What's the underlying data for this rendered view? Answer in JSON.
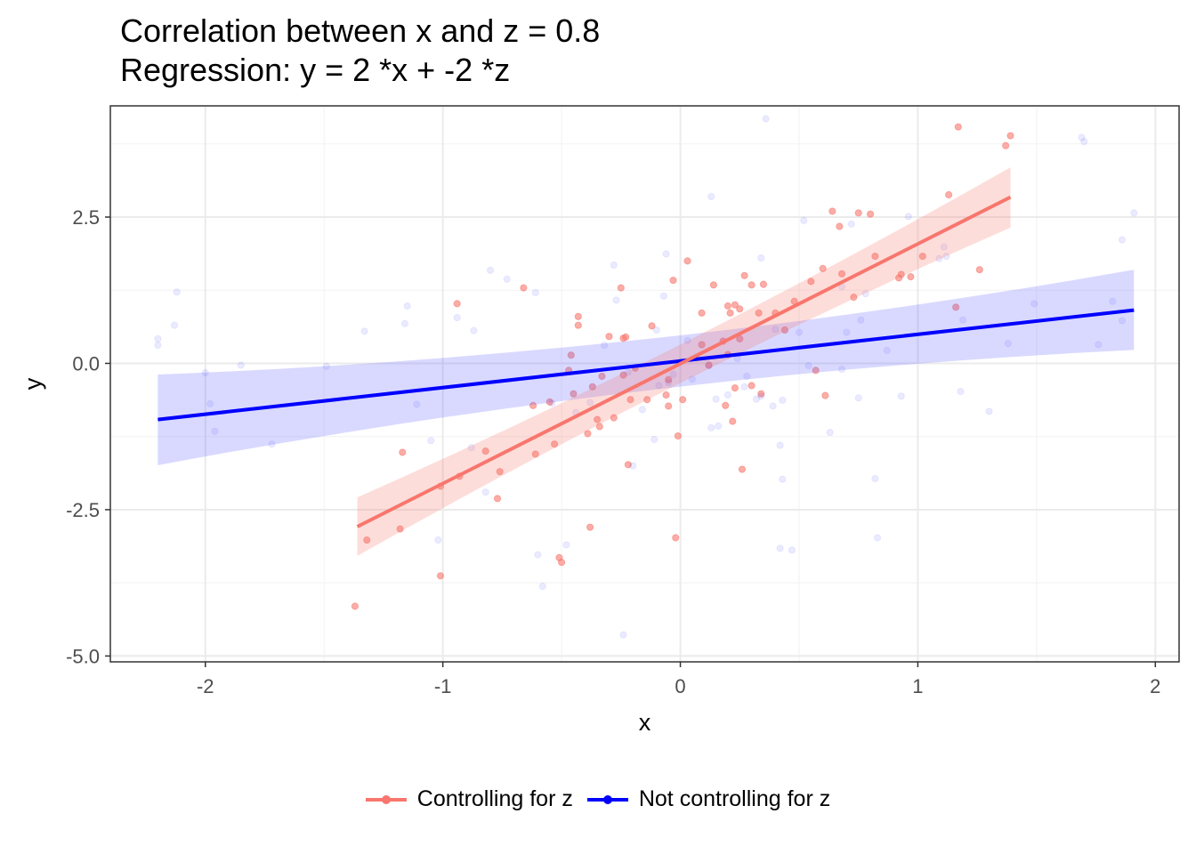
{
  "title_line1": "Correlation between x and z = 0.8",
  "title_line2": "Regression: y = 2 *x + -2 *z",
  "legend": {
    "items": [
      {
        "label": "Controlling for z",
        "color": "#F8766D"
      },
      {
        "label": "Not controlling for z",
        "color": "#0000FF"
      }
    ]
  },
  "chart_data": {
    "type": "scatter",
    "xlabel": "x",
    "ylabel": "y",
    "xlim": [
      -2.4,
      2.1
    ],
    "ylim": [
      -5.1,
      4.4
    ],
    "xticks": [
      -2,
      -1,
      0,
      1,
      2
    ],
    "xtick_labels": [
      "-2",
      "-1",
      "0",
      "1",
      "2"
    ],
    "yticks": [
      -5,
      -2.5,
      0,
      2.5
    ],
    "ytick_labels": [
      "-5.0",
      "-2.5",
      "0.0",
      "2.5"
    ],
    "grid": true,
    "legend_position": "bottom",
    "series": [
      {
        "name": "Controlling for z",
        "color": "#F8766D",
        "points": [
          [
            -1.37,
            -4.15
          ],
          [
            -1.32,
            -3.02
          ],
          [
            -1.18,
            -2.83
          ],
          [
            -1.17,
            -1.52
          ],
          [
            -1.01,
            -3.63
          ],
          [
            -1.01,
            -2.1
          ],
          [
            -0.94,
            1.02
          ],
          [
            -0.93,
            -1.93
          ],
          [
            -0.82,
            -1.5
          ],
          [
            -0.76,
            -1.85
          ],
          [
            -0.77,
            -2.31
          ],
          [
            -0.66,
            1.29
          ],
          [
            -0.62,
            -0.72
          ],
          [
            -0.61,
            -1.55
          ],
          [
            -0.55,
            -0.66
          ],
          [
            -0.53,
            -1.38
          ],
          [
            -0.51,
            -3.32
          ],
          [
            -0.5,
            -3.4
          ],
          [
            -0.47,
            -0.12
          ],
          [
            -0.46,
            0.14
          ],
          [
            -0.45,
            -0.52
          ],
          [
            -0.43,
            0.8
          ],
          [
            -0.43,
            0.65
          ],
          [
            -0.39,
            -1.2
          ],
          [
            -0.38,
            -2.8
          ],
          [
            -0.37,
            -0.4
          ],
          [
            -0.35,
            -0.96
          ],
          [
            -0.34,
            -1.08
          ],
          [
            -0.33,
            -0.22
          ],
          [
            -0.3,
            0.46
          ],
          [
            -0.28,
            -0.93
          ],
          [
            -0.25,
            1.29
          ],
          [
            -0.24,
            -0.2
          ],
          [
            -0.24,
            0.43
          ],
          [
            -0.23,
            0.45
          ],
          [
            -0.22,
            -1.73
          ],
          [
            -0.21,
            -0.62
          ],
          [
            -0.19,
            -0.08
          ],
          [
            -0.14,
            -0.62
          ],
          [
            -0.12,
            0.64
          ],
          [
            -0.06,
            -0.54
          ],
          [
            -0.05,
            -0.28
          ],
          [
            -0.05,
            -0.73
          ],
          [
            -0.03,
            1.42
          ],
          [
            -0.02,
            -2.98
          ],
          [
            -0.01,
            -1.24
          ],
          [
            0.01,
            -0.62
          ],
          [
            0.03,
            1.75
          ],
          [
            0.09,
            0.86
          ],
          [
            0.09,
            0.32
          ],
          [
            0.12,
            -0.03
          ],
          [
            0.14,
            1.34
          ],
          [
            0.18,
            0.38
          ],
          [
            0.19,
            -0.72
          ],
          [
            0.2,
            0.15
          ],
          [
            0.2,
            0.98
          ],
          [
            0.21,
            0.86
          ],
          [
            0.22,
            -0.99
          ],
          [
            0.23,
            1.0
          ],
          [
            0.23,
            -0.42
          ],
          [
            0.25,
            0.93
          ],
          [
            0.25,
            0.42
          ],
          [
            0.26,
            -1.81
          ],
          [
            0.27,
            1.5
          ],
          [
            0.3,
            -0.38
          ],
          [
            0.3,
            1.34
          ],
          [
            0.33,
            0.86
          ],
          [
            0.34,
            -0.52
          ],
          [
            0.35,
            1.35
          ],
          [
            0.4,
            0.86
          ],
          [
            0.44,
            0.57
          ],
          [
            0.48,
            1.06
          ],
          [
            0.55,
            1.4
          ],
          [
            0.57,
            -0.12
          ],
          [
            0.6,
            1.62
          ],
          [
            0.61,
            -0.55
          ],
          [
            0.64,
            2.6
          ],
          [
            0.67,
            2.34
          ],
          [
            0.68,
            1.53
          ],
          [
            0.73,
            1.13
          ],
          [
            0.75,
            2.57
          ],
          [
            0.8,
            2.55
          ],
          [
            0.82,
            1.83
          ],
          [
            0.93,
            1.52
          ],
          [
            0.92,
            1.46
          ],
          [
            0.97,
            1.48
          ],
          [
            1.02,
            1.83
          ],
          [
            1.13,
            2.88
          ],
          [
            1.16,
            0.96
          ],
          [
            1.17,
            4.04
          ],
          [
            1.26,
            1.6
          ],
          [
            1.37,
            3.72
          ],
          [
            1.39,
            3.89
          ]
        ],
        "fit": {
          "x": [
            -1.36,
            1.39
          ],
          "y": [
            -2.79,
            2.84
          ],
          "ci_low_ends": [
            -3.29,
            2.32
          ],
          "ci_high_ends": [
            -2.29,
            3.35
          ]
        }
      },
      {
        "name": "Not controlling for z",
        "color": "#0000FF",
        "points": [
          [
            -2.2,
            0.42
          ],
          [
            -2.2,
            0.31
          ],
          [
            -2.13,
            0.65
          ],
          [
            -2.12,
            1.22
          ],
          [
            -2.0,
            -0.16
          ],
          [
            -1.98,
            -0.69
          ],
          [
            -1.96,
            -1.16
          ],
          [
            -1.85,
            -0.03
          ],
          [
            -1.72,
            -1.38
          ],
          [
            -1.49,
            -0.05
          ],
          [
            -1.33,
            0.55
          ],
          [
            -1.16,
            0.68
          ],
          [
            -1.15,
            0.98
          ],
          [
            -1.11,
            -0.7
          ],
          [
            -1.05,
            -1.32
          ],
          [
            -1.02,
            -3.02
          ],
          [
            -0.94,
            0.78
          ],
          [
            -0.87,
            0.56
          ],
          [
            -0.88,
            -1.44
          ],
          [
            -0.82,
            -2.2
          ],
          [
            -0.8,
            1.59
          ],
          [
            -0.73,
            1.44
          ],
          [
            -0.61,
            1.21
          ],
          [
            -0.6,
            -3.27
          ],
          [
            -0.58,
            -3.81
          ],
          [
            -0.54,
            -0.68
          ],
          [
            -0.48,
            -3.1
          ],
          [
            -0.44,
            -0.84
          ],
          [
            -0.38,
            -0.67
          ],
          [
            -0.32,
            0.31
          ],
          [
            -0.28,
            1.68
          ],
          [
            -0.27,
            1.08
          ],
          [
            -0.24,
            -4.64
          ],
          [
            -0.22,
            -0.15
          ],
          [
            -0.2,
            -1.75
          ],
          [
            -0.16,
            -0.79
          ],
          [
            -0.11,
            -1.3
          ],
          [
            -0.1,
            0.57
          ],
          [
            -0.09,
            -0.38
          ],
          [
            -0.07,
            1.15
          ],
          [
            -0.06,
            1.87
          ],
          [
            -0.05,
            -0.33
          ],
          [
            -0.03,
            -0.19
          ],
          [
            0.03,
            0.39
          ],
          [
            0.05,
            -0.27
          ],
          [
            0.12,
            -0.04
          ],
          [
            0.13,
            2.85
          ],
          [
            0.13,
            -1.1
          ],
          [
            0.15,
            -0.61
          ],
          [
            0.16,
            -1.07
          ],
          [
            0.2,
            -0.54
          ],
          [
            0.24,
            0.08
          ],
          [
            0.27,
            -0.4
          ],
          [
            0.28,
            -0.22
          ],
          [
            0.32,
            -0.61
          ],
          [
            0.34,
            -0.56
          ],
          [
            0.34,
            1.8
          ],
          [
            0.36,
            4.18
          ],
          [
            0.39,
            -0.73
          ],
          [
            0.4,
            0.58
          ],
          [
            0.42,
            -3.16
          ],
          [
            0.42,
            -1.4
          ],
          [
            0.43,
            -0.63
          ],
          [
            0.43,
            -1.98
          ],
          [
            0.47,
            -3.19
          ],
          [
            0.5,
            0.53
          ],
          [
            0.52,
            2.44
          ],
          [
            0.54,
            -0.04
          ],
          [
            0.63,
            -1.18
          ],
          [
            0.68,
            -0.1
          ],
          [
            0.68,
            1.31
          ],
          [
            0.7,
            0.53
          ],
          [
            0.72,
            2.38
          ],
          [
            0.75,
            -0.59
          ],
          [
            0.76,
            0.74
          ],
          [
            0.78,
            1.19
          ],
          [
            0.82,
            -1.97
          ],
          [
            0.83,
            -2.98
          ],
          [
            0.87,
            0.22
          ],
          [
            0.93,
            -0.56
          ],
          [
            0.96,
            2.51
          ],
          [
            1.09,
            1.79
          ],
          [
            1.11,
            1.99
          ],
          [
            1.12,
            1.83
          ],
          [
            1.18,
            -0.48
          ],
          [
            1.19,
            0.74
          ],
          [
            1.3,
            -0.82
          ],
          [
            1.38,
            0.34
          ],
          [
            1.49,
            1.02
          ],
          [
            1.69,
            3.86
          ],
          [
            1.7,
            3.79
          ],
          [
            1.76,
            0.32
          ],
          [
            1.82,
            1.06
          ],
          [
            1.86,
            2.11
          ],
          [
            1.86,
            0.73
          ],
          [
            1.91,
            2.57
          ]
        ],
        "fit": {
          "x": [
            -2.2,
            1.91
          ],
          "y": [
            -0.96,
            0.91
          ],
          "ci_low_ends": [
            -1.74,
            0.23
          ],
          "ci_high_ends": [
            -0.19,
            1.6
          ]
        }
      }
    ]
  }
}
